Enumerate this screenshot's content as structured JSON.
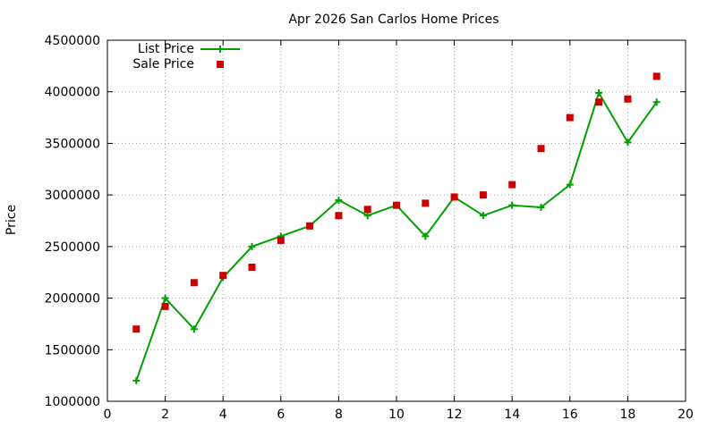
{
  "chart_data": {
    "type": "line",
    "title": "Apr 2026 San Carlos Home Prices",
    "xlabel": "",
    "ylabel": "Price",
    "xlim": [
      0,
      20
    ],
    "ylim": [
      1000000,
      4500000
    ],
    "x_ticks": [
      0,
      2,
      4,
      6,
      8,
      10,
      12,
      14,
      16,
      18,
      20
    ],
    "y_ticks": [
      1000000,
      1500000,
      2000000,
      2500000,
      3000000,
      3500000,
      4000000,
      4500000
    ],
    "grid": true,
    "legend_position": "top-left",
    "series": [
      {
        "name": "List Price",
        "style": "line-with-plus-markers",
        "color": "#00a000",
        "x": [
          1,
          2,
          3,
          4,
          5,
          6,
          7,
          8,
          9,
          10,
          11,
          12,
          13,
          14,
          15,
          16,
          17,
          18,
          19
        ],
        "values": [
          1200000,
          2000000,
          1700000,
          2200000,
          2500000,
          2600000,
          2700000,
          2950000,
          2800000,
          2900000,
          2600000,
          2980000,
          2800000,
          2900000,
          2880000,
          3100000,
          3990000,
          3510000,
          3900000
        ]
      },
      {
        "name": "Sale Price",
        "style": "square-markers",
        "color": "#cc0000",
        "x": [
          1,
          2,
          3,
          4,
          5,
          6,
          7,
          8,
          9,
          10,
          11,
          12,
          13,
          14,
          15,
          16,
          17,
          18,
          19
        ],
        "values": [
          1700000,
          1920000,
          2150000,
          2220000,
          2300000,
          2560000,
          2700000,
          2800000,
          2860000,
          2900000,
          2920000,
          2980000,
          3000000,
          3100000,
          3450000,
          3750000,
          3900000,
          3930000,
          4150000
        ]
      }
    ]
  }
}
